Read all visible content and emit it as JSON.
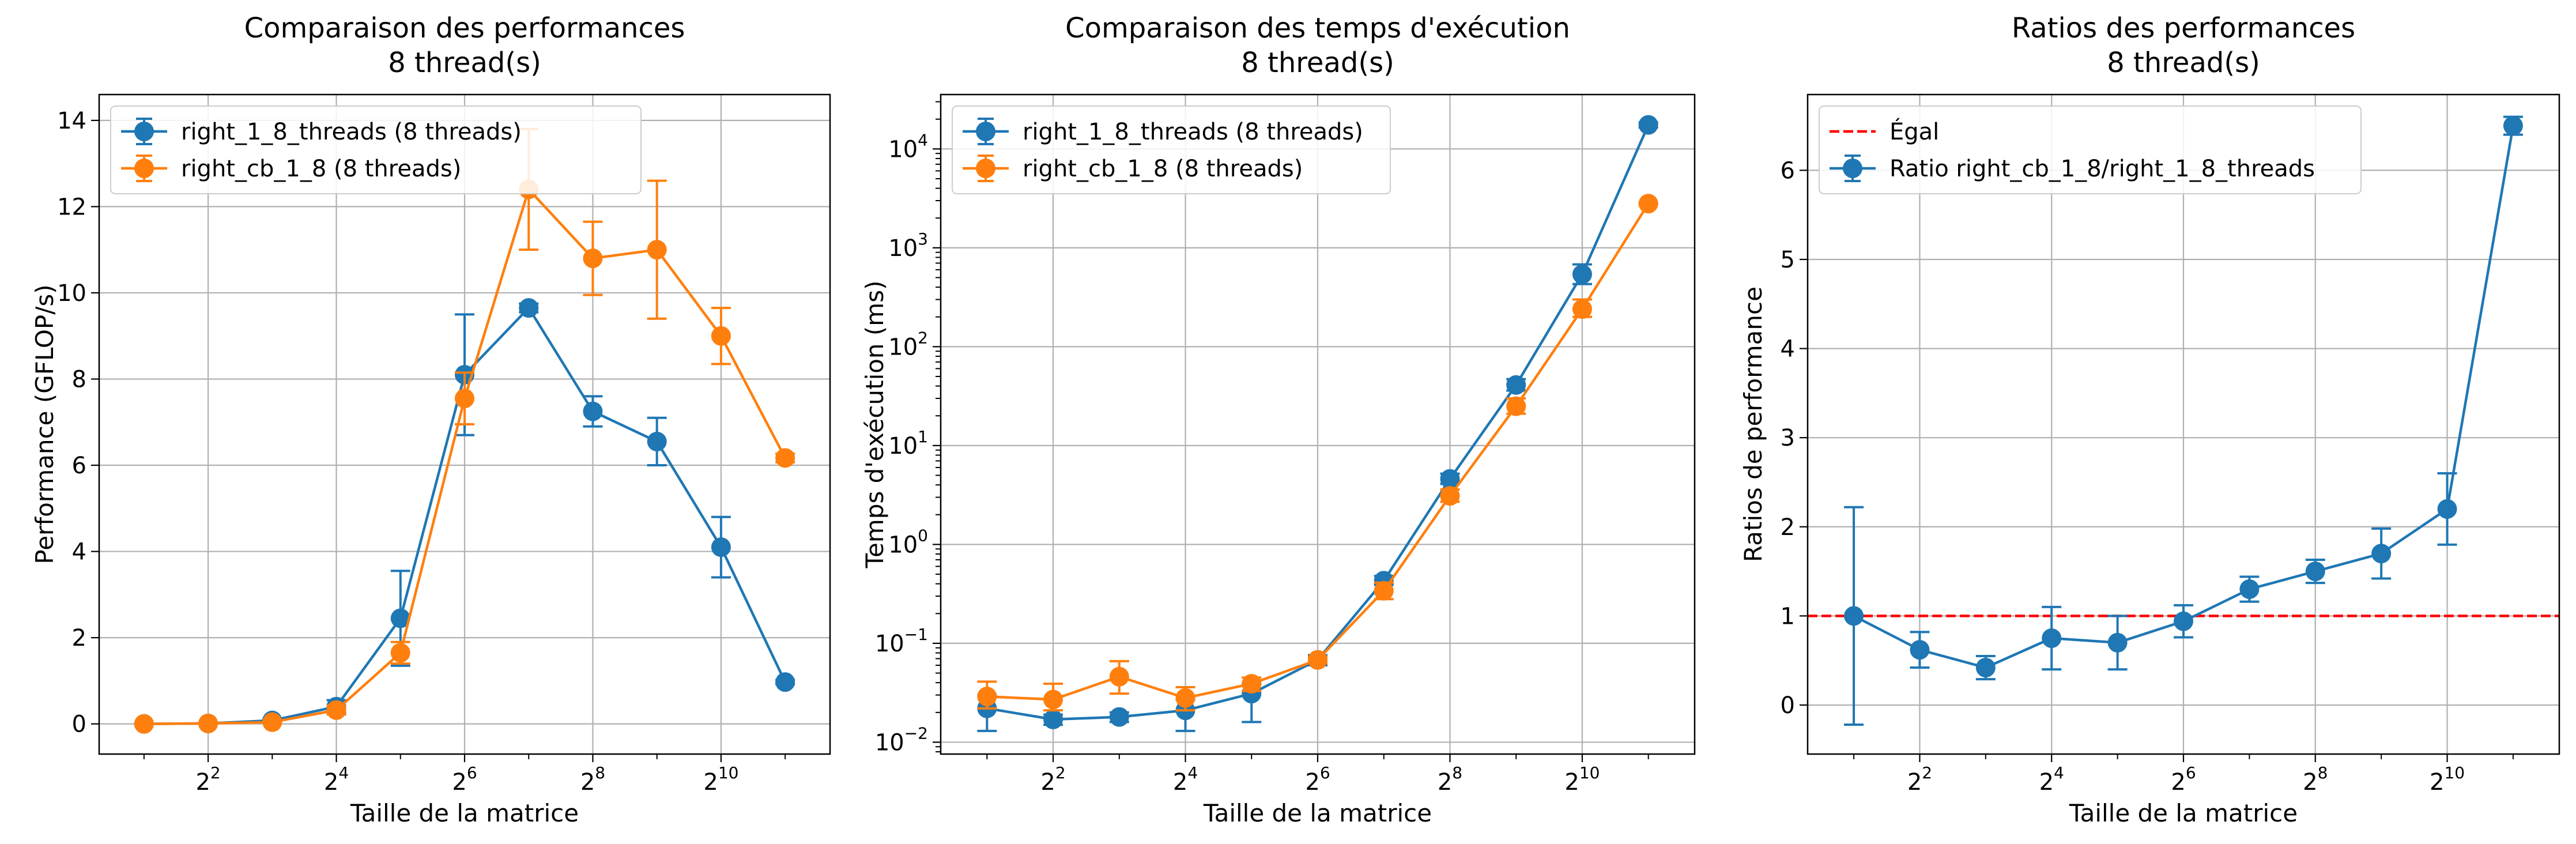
{
  "colors": {
    "blue": "#1f77b4",
    "orange": "#ff7f0e",
    "red": "#ff0000",
    "grid": "#b0b0b0"
  },
  "chart_data": [
    {
      "type": "line",
      "title": "Comparaison des performances",
      "subtitle": "8 thread(s)",
      "xlabel": "Taille de la matrice",
      "ylabel": "Performance (GFLOP/s)",
      "xscale": "log2",
      "yscale": "linear",
      "xlim_exp": [
        0.3,
        11.7
      ],
      "ylim": [
        -0.7,
        14.6
      ],
      "x_ticks": [
        {
          "exp": 2,
          "base": "2",
          "sup": "2"
        },
        {
          "exp": 4,
          "base": "2",
          "sup": "4"
        },
        {
          "exp": 6,
          "base": "2",
          "sup": "6"
        },
        {
          "exp": 8,
          "base": "2",
          "sup": "8"
        },
        {
          "exp": 10,
          "base": "2",
          "sup": "10"
        }
      ],
      "y_ticks": [
        {
          "v": 0,
          "label": "0"
        },
        {
          "v": 2,
          "label": "2"
        },
        {
          "v": 4,
          "label": "4"
        },
        {
          "v": 6,
          "label": "6"
        },
        {
          "v": 8,
          "label": "8"
        },
        {
          "v": 10,
          "label": "10"
        },
        {
          "v": 12,
          "label": "12"
        },
        {
          "v": 14,
          "label": "14"
        }
      ],
      "grid": true,
      "legend": "top-left",
      "x": [
        2,
        4,
        8,
        16,
        32,
        64,
        128,
        256,
        512,
        1024,
        2048
      ],
      "series": [
        {
          "name": "right_1_8_threads (8 threads)",
          "color": "#1f77b4",
          "linestyle": "solid",
          "marker": "circle",
          "values": [
            0.0,
            0.01,
            0.08,
            0.4,
            2.45,
            8.1,
            9.65,
            7.25,
            6.55,
            4.1,
            0.97
          ],
          "errors": [
            0.0,
            0.01,
            0.04,
            0.15,
            1.1,
            1.4,
            0.1,
            0.35,
            0.55,
            0.7,
            0.05
          ]
        },
        {
          "name": "right_cb_1_8 (8 threads)",
          "color": "#ff7f0e",
          "linestyle": "solid",
          "marker": "circle",
          "values": [
            0.0,
            0.01,
            0.04,
            0.32,
            1.65,
            7.55,
            12.4,
            10.8,
            11.0,
            9.0,
            6.17
          ],
          "errors": [
            0.0,
            0.01,
            0.02,
            0.1,
            0.25,
            0.6,
            1.4,
            0.85,
            1.6,
            0.65,
            0.1
          ]
        }
      ]
    },
    {
      "type": "line",
      "title": "Comparaison des temps d'exécution",
      "subtitle": "8 thread(s)",
      "xlabel": "Taille de la matrice",
      "ylabel": "Temps d'exécution (ms)",
      "xscale": "log2",
      "yscale": "log10",
      "xlim_exp": [
        0.3,
        11.7
      ],
      "ylim_exp": [
        -2.12,
        4.55
      ],
      "x_ticks": [
        {
          "exp": 2,
          "base": "2",
          "sup": "2"
        },
        {
          "exp": 4,
          "base": "2",
          "sup": "4"
        },
        {
          "exp": 6,
          "base": "2",
          "sup": "6"
        },
        {
          "exp": 8,
          "base": "2",
          "sup": "8"
        },
        {
          "exp": 10,
          "base": "2",
          "sup": "10"
        }
      ],
      "y_ticks": [
        {
          "exp": -2,
          "base": "10",
          "sup": "−2"
        },
        {
          "exp": -1,
          "base": "10",
          "sup": "−1"
        },
        {
          "exp": 0,
          "base": "10",
          "sup": "0"
        },
        {
          "exp": 1,
          "base": "10",
          "sup": "1"
        },
        {
          "exp": 2,
          "base": "10",
          "sup": "2"
        },
        {
          "exp": 3,
          "base": "10",
          "sup": "3"
        },
        {
          "exp": 4,
          "base": "10",
          "sup": "4"
        }
      ],
      "grid": true,
      "legend": "top-left",
      "x": [
        2,
        4,
        8,
        16,
        32,
        64,
        128,
        256,
        512,
        1024,
        2048
      ],
      "series": [
        {
          "name": "right_1_8_threads (8 threads)",
          "color": "#1f77b4",
          "linestyle": "solid",
          "marker": "circle",
          "values": [
            0.022,
            0.017,
            0.018,
            0.021,
            0.031,
            0.068,
            0.43,
            4.6,
            41,
            540,
            17500
          ],
          "err_lo": [
            0.009,
            0.002,
            0.002,
            0.008,
            0.015,
            0.008,
            0.04,
            0.5,
            5,
            110,
            1000
          ],
          "err_hi": [
            0.008,
            0.002,
            0.002,
            0.006,
            0.008,
            0.008,
            0.05,
            0.6,
            6,
            140,
            1000
          ]
        },
        {
          "name": "right_cb_1_8 (8 threads)",
          "color": "#ff7f0e",
          "linestyle": "solid",
          "marker": "circle",
          "values": [
            0.029,
            0.027,
            0.046,
            0.028,
            0.039,
            0.068,
            0.34,
            3.1,
            25,
            240,
            2800
          ],
          "err_lo": [
            0.007,
            0.006,
            0.015,
            0.007,
            0.006,
            0.005,
            0.06,
            0.4,
            4,
            40,
            50
          ],
          "err_hi": [
            0.012,
            0.012,
            0.02,
            0.008,
            0.006,
            0.005,
            0.07,
            0.5,
            5,
            60,
            50
          ]
        }
      ]
    },
    {
      "type": "line",
      "title": "Ratios des performances",
      "subtitle": "8 thread(s)",
      "xlabel": "Taille de la matrice",
      "ylabel": "Ratios de performance",
      "xscale": "log2",
      "yscale": "linear",
      "xlim_exp": [
        0.3,
        11.7
      ],
      "ylim": [
        -0.55,
        6.85
      ],
      "x_ticks": [
        {
          "exp": 2,
          "base": "2",
          "sup": "2"
        },
        {
          "exp": 4,
          "base": "2",
          "sup": "4"
        },
        {
          "exp": 6,
          "base": "2",
          "sup": "6"
        },
        {
          "exp": 8,
          "base": "2",
          "sup": "8"
        },
        {
          "exp": 10,
          "base": "2",
          "sup": "10"
        }
      ],
      "y_ticks": [
        {
          "v": 0,
          "label": "0"
        },
        {
          "v": 1,
          "label": "1"
        },
        {
          "v": 2,
          "label": "2"
        },
        {
          "v": 3,
          "label": "3"
        },
        {
          "v": 4,
          "label": "4"
        },
        {
          "v": 5,
          "label": "5"
        },
        {
          "v": 6,
          "label": "6"
        }
      ],
      "grid": true,
      "legend": "top-left",
      "reference_line": {
        "name": "Égal",
        "value": 1,
        "color": "#ff0000",
        "linestyle": "dashed"
      },
      "x": [
        2,
        4,
        8,
        16,
        32,
        64,
        128,
        256,
        512,
        1024,
        2048
      ],
      "series": [
        {
          "name": "Ratio right_cb_1_8/right_1_8_threads",
          "color": "#1f77b4",
          "linestyle": "solid",
          "marker": "circle",
          "values": [
            1.0,
            0.62,
            0.42,
            0.75,
            0.7,
            0.94,
            1.3,
            1.5,
            1.7,
            2.2,
            6.5
          ],
          "errors": [
            1.22,
            0.2,
            0.13,
            0.35,
            0.3,
            0.18,
            0.14,
            0.13,
            0.28,
            0.4,
            0.1
          ]
        }
      ]
    }
  ]
}
